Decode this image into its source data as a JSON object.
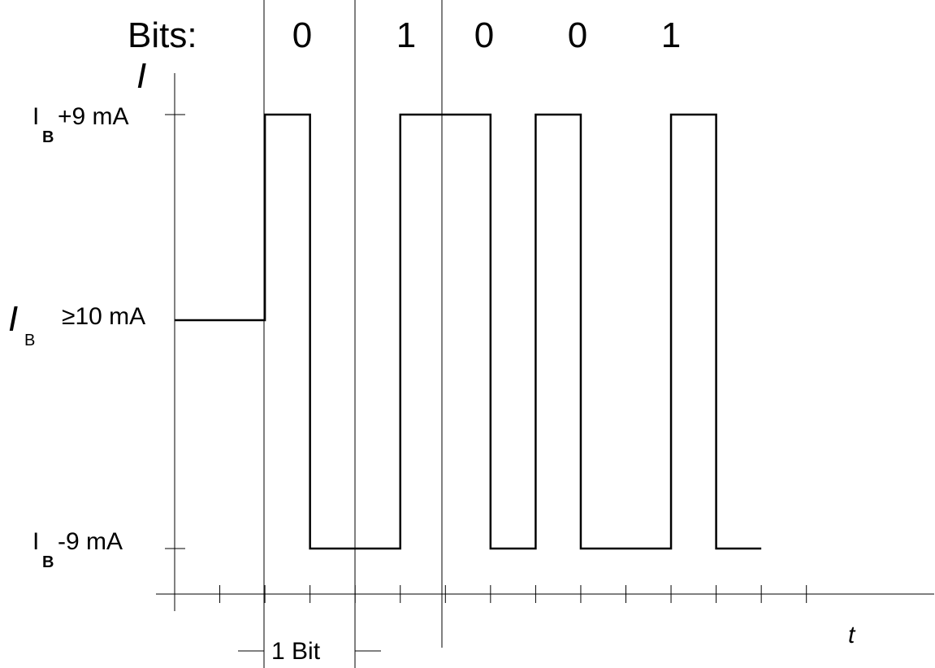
{
  "header": {
    "bits_label": "Bits:",
    "bits": [
      "0",
      "1",
      "0",
      "0",
      "1"
    ]
  },
  "axes": {
    "y_label": "I",
    "x_label": "t"
  },
  "levels": {
    "high": {
      "symbol": "I",
      "subscript": "B",
      "suffix": "+9 mA"
    },
    "base": {
      "symbol": "I",
      "subscript": "B",
      "suffix": "≥10 mA"
    },
    "low": {
      "symbol": "I",
      "subscript": "B",
      "suffix": "-9 mA"
    }
  },
  "bit_width_label": "1 Bit",
  "waveform": {
    "levels_order": [
      "base",
      "high",
      "low"
    ],
    "initial_level": "base",
    "tick_count": 14,
    "transitions": [
      {
        "tick": 2,
        "level": "high"
      },
      {
        "tick": 3,
        "level": "low"
      },
      {
        "tick": 5,
        "level": "high"
      },
      {
        "tick": 7,
        "level": "low"
      },
      {
        "tick": 8,
        "level": "high"
      },
      {
        "tick": 9,
        "level": "low"
      },
      {
        "tick": 11,
        "level": "high"
      },
      {
        "tick": 12,
        "level": "low"
      }
    ],
    "end_tick": 13
  },
  "colors": {
    "line": "#000000",
    "background": "#ffffff"
  }
}
